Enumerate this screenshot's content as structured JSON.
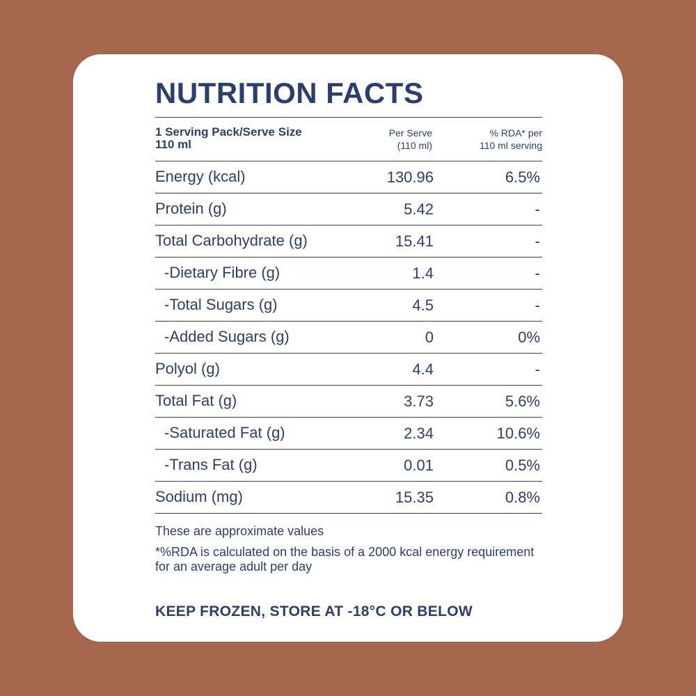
{
  "panel": {
    "title": "NUTRITION FACTS",
    "header": {
      "serving_line1": "1 Serving Pack/Serve Size",
      "serving_line2": "110 ml",
      "per_serve_line1": "Per Serve",
      "per_serve_line2": "(110 ml)",
      "rda_line1": "% RDA* per",
      "rda_line2": "110 ml serving"
    },
    "rows": [
      {
        "label": "Energy (kcal)",
        "value": "130.96",
        "rda": "6.5%"
      },
      {
        "label": "Protein (g)",
        "value": "5.42",
        "rda": "-"
      },
      {
        "label": "Total Carbohydrate (g)",
        "value": "15.41",
        "rda": "-"
      },
      {
        "label": "-Dietary Fibre (g)",
        "value": "1.4",
        "rda": "-"
      },
      {
        "label": "-Total Sugars (g)",
        "value": "4.5",
        "rda": "-"
      },
      {
        "label": "-Added Sugars (g)",
        "value": "0",
        "rda": "0%"
      },
      {
        "label": "Polyol (g)",
        "value": "4.4",
        "rda": "-"
      },
      {
        "label": "Total Fat (g)",
        "value": "3.73",
        "rda": "5.6%"
      },
      {
        "label": "-Saturated Fat (g)",
        "value": "2.34",
        "rda": "10.6%"
      },
      {
        "label": "-Trans Fat (g)",
        "value": "0.01",
        "rda": "0.5%"
      },
      {
        "label": "Sodium (mg)",
        "value": "15.35",
        "rda": "0.8%"
      }
    ],
    "note_approx": "These are approximate values",
    "note_rda": "*%RDA is calculated on the basis of a 2000 kcal energy requirement for an average adult per day",
    "storage": "KEEP FROZEN, STORE AT -18°C OR BELOW"
  },
  "colors": {
    "background": "#a4664d",
    "card": "#ffffff",
    "text": "#2c3e6b"
  }
}
